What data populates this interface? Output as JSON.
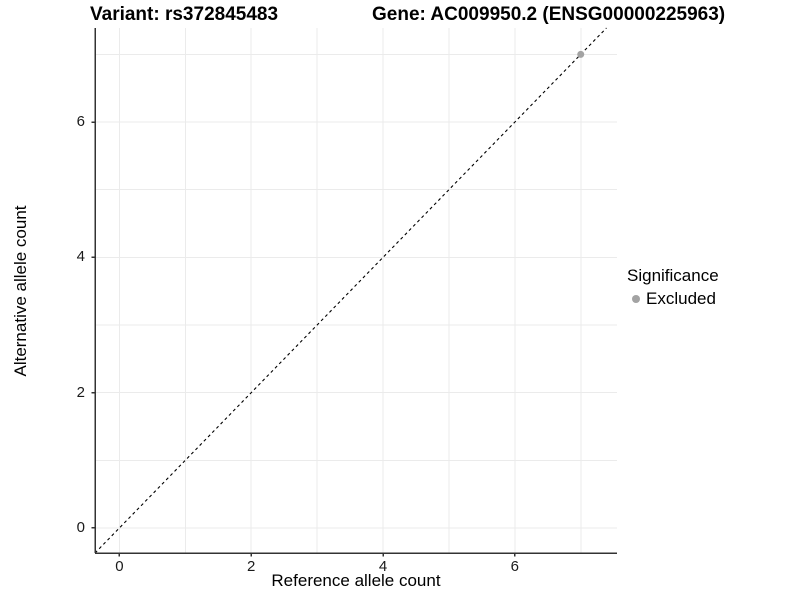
{
  "titles": {
    "variant": "Variant: rs372845483",
    "gene": "Gene: AC009950.2 (ENSG00000225963)"
  },
  "legend": {
    "title": "Significance",
    "entries": [
      {
        "label": "Excluded",
        "color": "#a3a3a3"
      }
    ],
    "position": "right"
  },
  "colors": {
    "background": "#ffffff",
    "gridline": "#ebebeb",
    "axis_line": "#333333",
    "tick_text": "#1a1a1a",
    "identity_line": "#000000",
    "excluded_point": "#a3a3a3"
  },
  "chart_data": {
    "type": "scatter",
    "title": "Variant: rs372845483  /  Gene: AC009950.2 (ENSG00000225963)",
    "xlabel": "Reference allele count",
    "ylabel": "Alternative allele count",
    "xlim": [
      -0.37,
      7.55
    ],
    "ylim": [
      -0.37,
      7.39
    ],
    "x_ticks": [
      0,
      2,
      4,
      6
    ],
    "y_ticks": [
      0,
      2,
      4,
      6
    ],
    "x_tick_labels": [
      "0",
      "2",
      "4",
      "6"
    ],
    "y_tick_labels": [
      "0",
      "2",
      "4",
      "6"
    ],
    "x_gridlines": [
      0,
      1,
      2,
      3,
      4,
      5,
      6,
      7
    ],
    "y_gridlines": [
      0,
      1,
      2,
      3,
      4,
      5,
      6,
      7
    ],
    "grid": true,
    "reference_line": {
      "type": "identity",
      "style": "dashed",
      "color": "#000000"
    },
    "series": [
      {
        "name": "Excluded",
        "color": "#a3a3a3",
        "points": [
          {
            "x": 7,
            "y": 7
          }
        ]
      }
    ],
    "legend_position": "right"
  }
}
